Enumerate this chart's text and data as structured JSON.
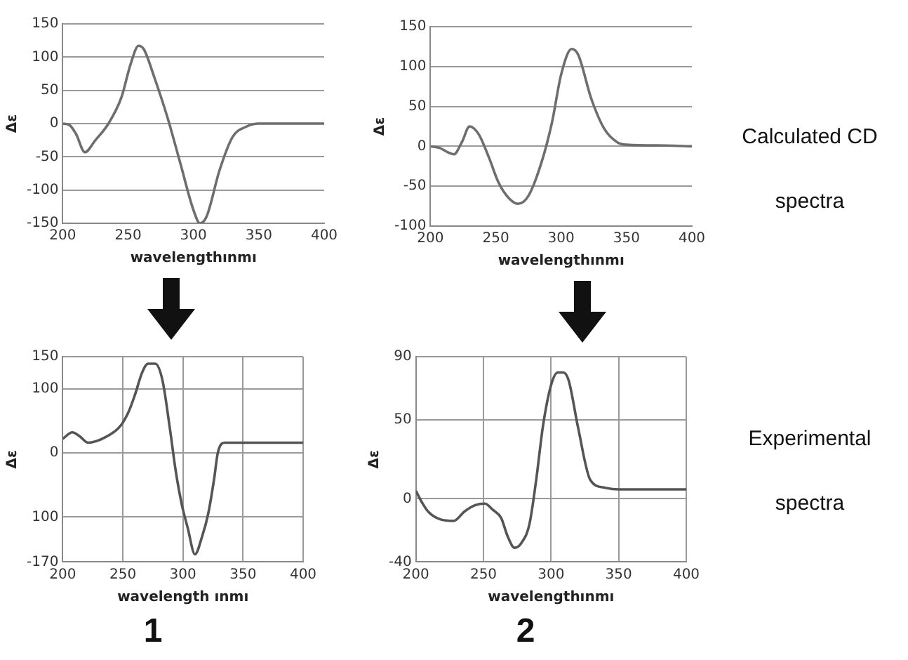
{
  "chart_data": [
    {
      "type": "line",
      "xlabel": "wavelengthınmı",
      "ylabel": "Δε",
      "xlim": [
        200,
        400
      ],
      "ylim": [
        -150,
        150
      ],
      "xticks": [
        200,
        250,
        300,
        350,
        400
      ],
      "yticks": [
        -150,
        -100,
        -50,
        0,
        50,
        100,
        150
      ],
      "grid": "y",
      "marker": "none",
      "line_style": "solid",
      "series": [
        {
          "color": "#6e6e6e",
          "x": [
            200,
            205,
            210,
            217,
            225,
            235,
            245,
            252,
            258,
            262,
            270,
            280,
            290,
            300,
            305,
            310,
            320,
            330,
            340,
            350,
            400
          ],
          "values": [
            0,
            -2,
            -15,
            -43,
            -25,
            0,
            40,
            90,
            117,
            112,
            70,
            10,
            -60,
            -130,
            -150,
            -140,
            -70,
            -20,
            -5,
            0,
            0
          ]
        }
      ]
    },
    {
      "type": "line",
      "xlabel": "wavelengthınmı",
      "ylabel": "Δε",
      "xlim": [
        200,
        400
      ],
      "ylim": [
        -100,
        150
      ],
      "xticks": [
        200,
        250,
        300,
        350,
        400
      ],
      "yticks": [
        -100,
        -50,
        0,
        50,
        100,
        150
      ],
      "grid": "y",
      "marker": "none",
      "line_style": "solid",
      "annotations": [
        "Calculated CD spectra"
      ],
      "series": [
        {
          "color": "#6e6e6e",
          "x": [
            200,
            207,
            214,
            218,
            224,
            230,
            237,
            245,
            252,
            260,
            267,
            275,
            285,
            293,
            300,
            308,
            313,
            323,
            333,
            343,
            350,
            380,
            400
          ],
          "values": [
            0,
            -2,
            -8,
            -10,
            5,
            25,
            15,
            -15,
            -45,
            -65,
            -72,
            -62,
            -20,
            30,
            90,
            122,
            115,
            60,
            22,
            5,
            2,
            1,
            0
          ]
        }
      ]
    },
    {
      "type": "line",
      "title": "1",
      "xlabel": "wavelength ınmı",
      "ylabel": "Δε",
      "xlim": [
        200,
        400
      ],
      "ylim": [
        -170,
        150
      ],
      "xticks": [
        200,
        250,
        300,
        350,
        400
      ],
      "yticks": [
        150,
        100,
        0,
        {
          "value": -100,
          "label": "100"
        },
        -170
      ],
      "grid": true,
      "marker": "none",
      "line_style": "solid",
      "series": [
        {
          "color": "#555555",
          "x": [
            200,
            208,
            214,
            221,
            235,
            248,
            255,
            260,
            266,
            271,
            277,
            283,
            289,
            294,
            299,
            304,
            310,
            316,
            321,
            326,
            329,
            335,
            345,
            400
          ],
          "values": [
            22,
            32,
            26,
            16,
            24,
            42,
            65,
            90,
            125,
            139,
            139,
            113,
            40,
            -28,
            -80,
            -117,
            -158,
            -130,
            -95,
            -40,
            0,
            16,
            16,
            16
          ]
        }
      ]
    },
    {
      "type": "line",
      "title": "2",
      "xlabel": "wavelengthınmı",
      "ylabel": "Δε",
      "xlim": [
        200,
        400
      ],
      "ylim": [
        -40,
        90
      ],
      "xticks": [
        200,
        250,
        300,
        350,
        400
      ],
      "yticks": [
        -40,
        0,
        50,
        90
      ],
      "grid": true,
      "marker": "none",
      "line_style": "solid",
      "annotations": [
        "Experimental spectra"
      ],
      "series": [
        {
          "color": "#555555",
          "x": [
            200,
            205,
            209,
            218,
            228,
            236,
            244,
            251,
            257,
            263,
            268,
            273,
            278,
            284,
            289,
            294,
            300,
            305,
            309,
            313,
            320,
            329,
            340,
            350,
            400
          ],
          "values": [
            5,
            -3,
            -8,
            -13,
            -14,
            -8,
            -4,
            -3,
            -7,
            -12,
            -24,
            -31,
            -28,
            -16,
            12,
            46,
            72,
            80,
            80,
            75,
            45,
            12,
            7,
            6,
            6
          ]
        }
      ]
    }
  ]
}
